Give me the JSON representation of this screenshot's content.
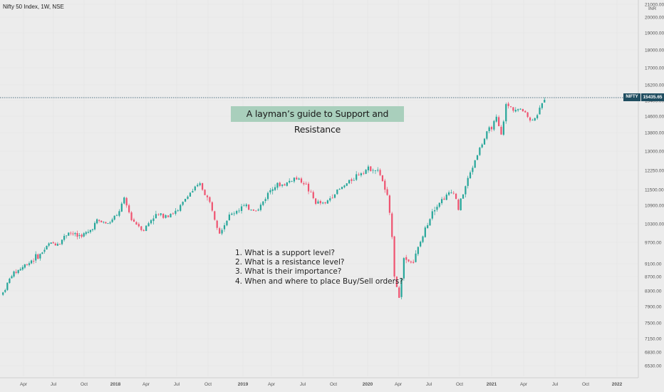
{
  "header": {
    "symbol_label": "Nifty 50 Index, 1W, NSE"
  },
  "annotations": {
    "title": "A layman’s guide to Support and Resistance",
    "questions": [
      "1. What is a support level?",
      "2. What is a resistance level?",
      "3. What is their importance?",
      "4. When and where to place Buy/Sell orders?"
    ]
  },
  "price_tag": {
    "symbol": "NIFTY",
    "value": "15435.65"
  },
  "colors": {
    "up": "#26a69a",
    "down": "#ef5370",
    "tag": "#1f4d60",
    "banner": "#a9cfbc"
  },
  "chart_data": {
    "type": "candlestick",
    "interval": "1W",
    "currency": "INR",
    "y_ticks": [
      "21000.00",
      "20000.00",
      "19000.00",
      "18000.00",
      "17000.00",
      "16200.00",
      "15400.00",
      "14600.00",
      "13800.00",
      "13000.00",
      "12250.00",
      "11500.00",
      "10900.00",
      "10300.00",
      "9700.00",
      "9100.00",
      "8700.00",
      "8300.00",
      "7900.00",
      "7500.00",
      "7150.00",
      "6830.00",
      "6530.00"
    ],
    "y_unit_label": "INR",
    "x_ticks": [
      "Apr",
      "Jul",
      "Oct",
      "2018",
      "Apr",
      "Jul",
      "Oct",
      "2019",
      "Apr",
      "Jul",
      "Oct",
      "2020",
      "Apr",
      "Jul",
      "Oct",
      "2021",
      "Apr",
      "Jul",
      "Oct",
      "2022"
    ],
    "last_price": 15435.65,
    "close_path": [
      [
        "2017-01-06",
        8250
      ],
      [
        "2017-02-03",
        8750
      ],
      [
        "2017-03-03",
        8950
      ],
      [
        "2017-04-07",
        9200
      ],
      [
        "2017-05-05",
        9350
      ],
      [
        "2017-06-02",
        9650
      ],
      [
        "2017-07-07",
        9700
      ],
      [
        "2017-08-04",
        10050
      ],
      [
        "2017-09-01",
        9900
      ],
      [
        "2017-10-06",
        10000
      ],
      [
        "2017-11-03",
        10400
      ],
      [
        "2017-12-08",
        10300
      ],
      [
        "2018-01-05",
        10550
      ],
      [
        "2018-01-26",
        11100
      ],
      [
        "2018-02-16",
        10450
      ],
      [
        "2018-03-23",
        10100
      ],
      [
        "2018-04-20",
        10550
      ],
      [
        "2018-05-25",
        10600
      ],
      [
        "2018-06-29",
        10700
      ],
      [
        "2018-07-27",
        11300
      ],
      [
        "2018-08-31",
        11700
      ],
      [
        "2018-09-28",
        11000
      ],
      [
        "2018-10-26",
        10050
      ],
      [
        "2018-11-23",
        10550
      ],
      [
        "2018-12-28",
        10850
      ],
      [
        "2019-02-15",
        10750
      ],
      [
        "2019-03-29",
        11650
      ],
      [
        "2019-05-03",
        11700
      ],
      [
        "2019-05-31",
        11950
      ],
      [
        "2019-06-28",
        11800
      ],
      [
        "2019-08-02",
        11000
      ],
      [
        "2019-08-30",
        10950
      ],
      [
        "2019-09-20",
        11300
      ],
      [
        "2019-10-25",
        11650
      ],
      [
        "2019-11-29",
        12050
      ],
      [
        "2019-12-20",
        12250
      ],
      [
        "2020-01-17",
        12350
      ],
      [
        "2020-02-07",
        12100
      ],
      [
        "2020-02-28",
        11200
      ],
      [
        "2020-03-13",
        9950
      ],
      [
        "2020-03-20",
        8750
      ],
      [
        "2020-04-03",
        8100
      ],
      [
        "2020-04-17",
        9250
      ],
      [
        "2020-05-15",
        9150
      ],
      [
        "2020-06-12",
        9900
      ],
      [
        "2020-07-10",
        10750
      ],
      [
        "2020-08-14",
        11200
      ],
      [
        "2020-09-11",
        11450
      ],
      [
        "2020-09-25",
        10800
      ],
      [
        "2020-10-23",
        11900
      ],
      [
        "2020-11-20",
        12900
      ],
      [
        "2020-12-18",
        13750
      ],
      [
        "2021-01-15",
        14450
      ],
      [
        "2021-01-29",
        13650
      ],
      [
        "2021-02-12",
        15150
      ],
      [
        "2021-03-12",
        14950
      ],
      [
        "2021-04-09",
        14850
      ],
      [
        "2021-04-23",
        14350
      ],
      [
        "2021-05-14",
        14700
      ],
      [
        "2021-06-04",
        15435
      ]
    ]
  }
}
